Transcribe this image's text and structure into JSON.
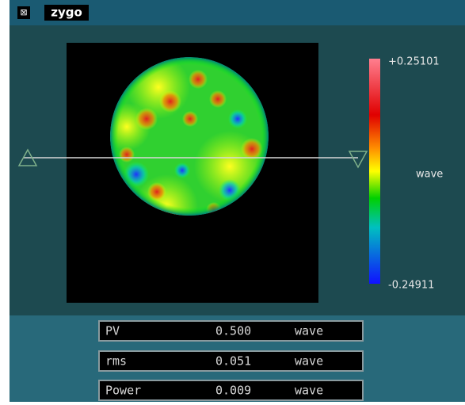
{
  "window": {
    "title": "zygo"
  },
  "colorbar": {
    "max": "+0.25101",
    "unit": "wave",
    "min": "-0.24911"
  },
  "results": {
    "rows": [
      [
        "PV",
        "0.500",
        "wave"
      ],
      [
        "rms",
        "0.051",
        "wave"
      ],
      [
        "Power",
        "0.009",
        "wave"
      ]
    ]
  }
}
